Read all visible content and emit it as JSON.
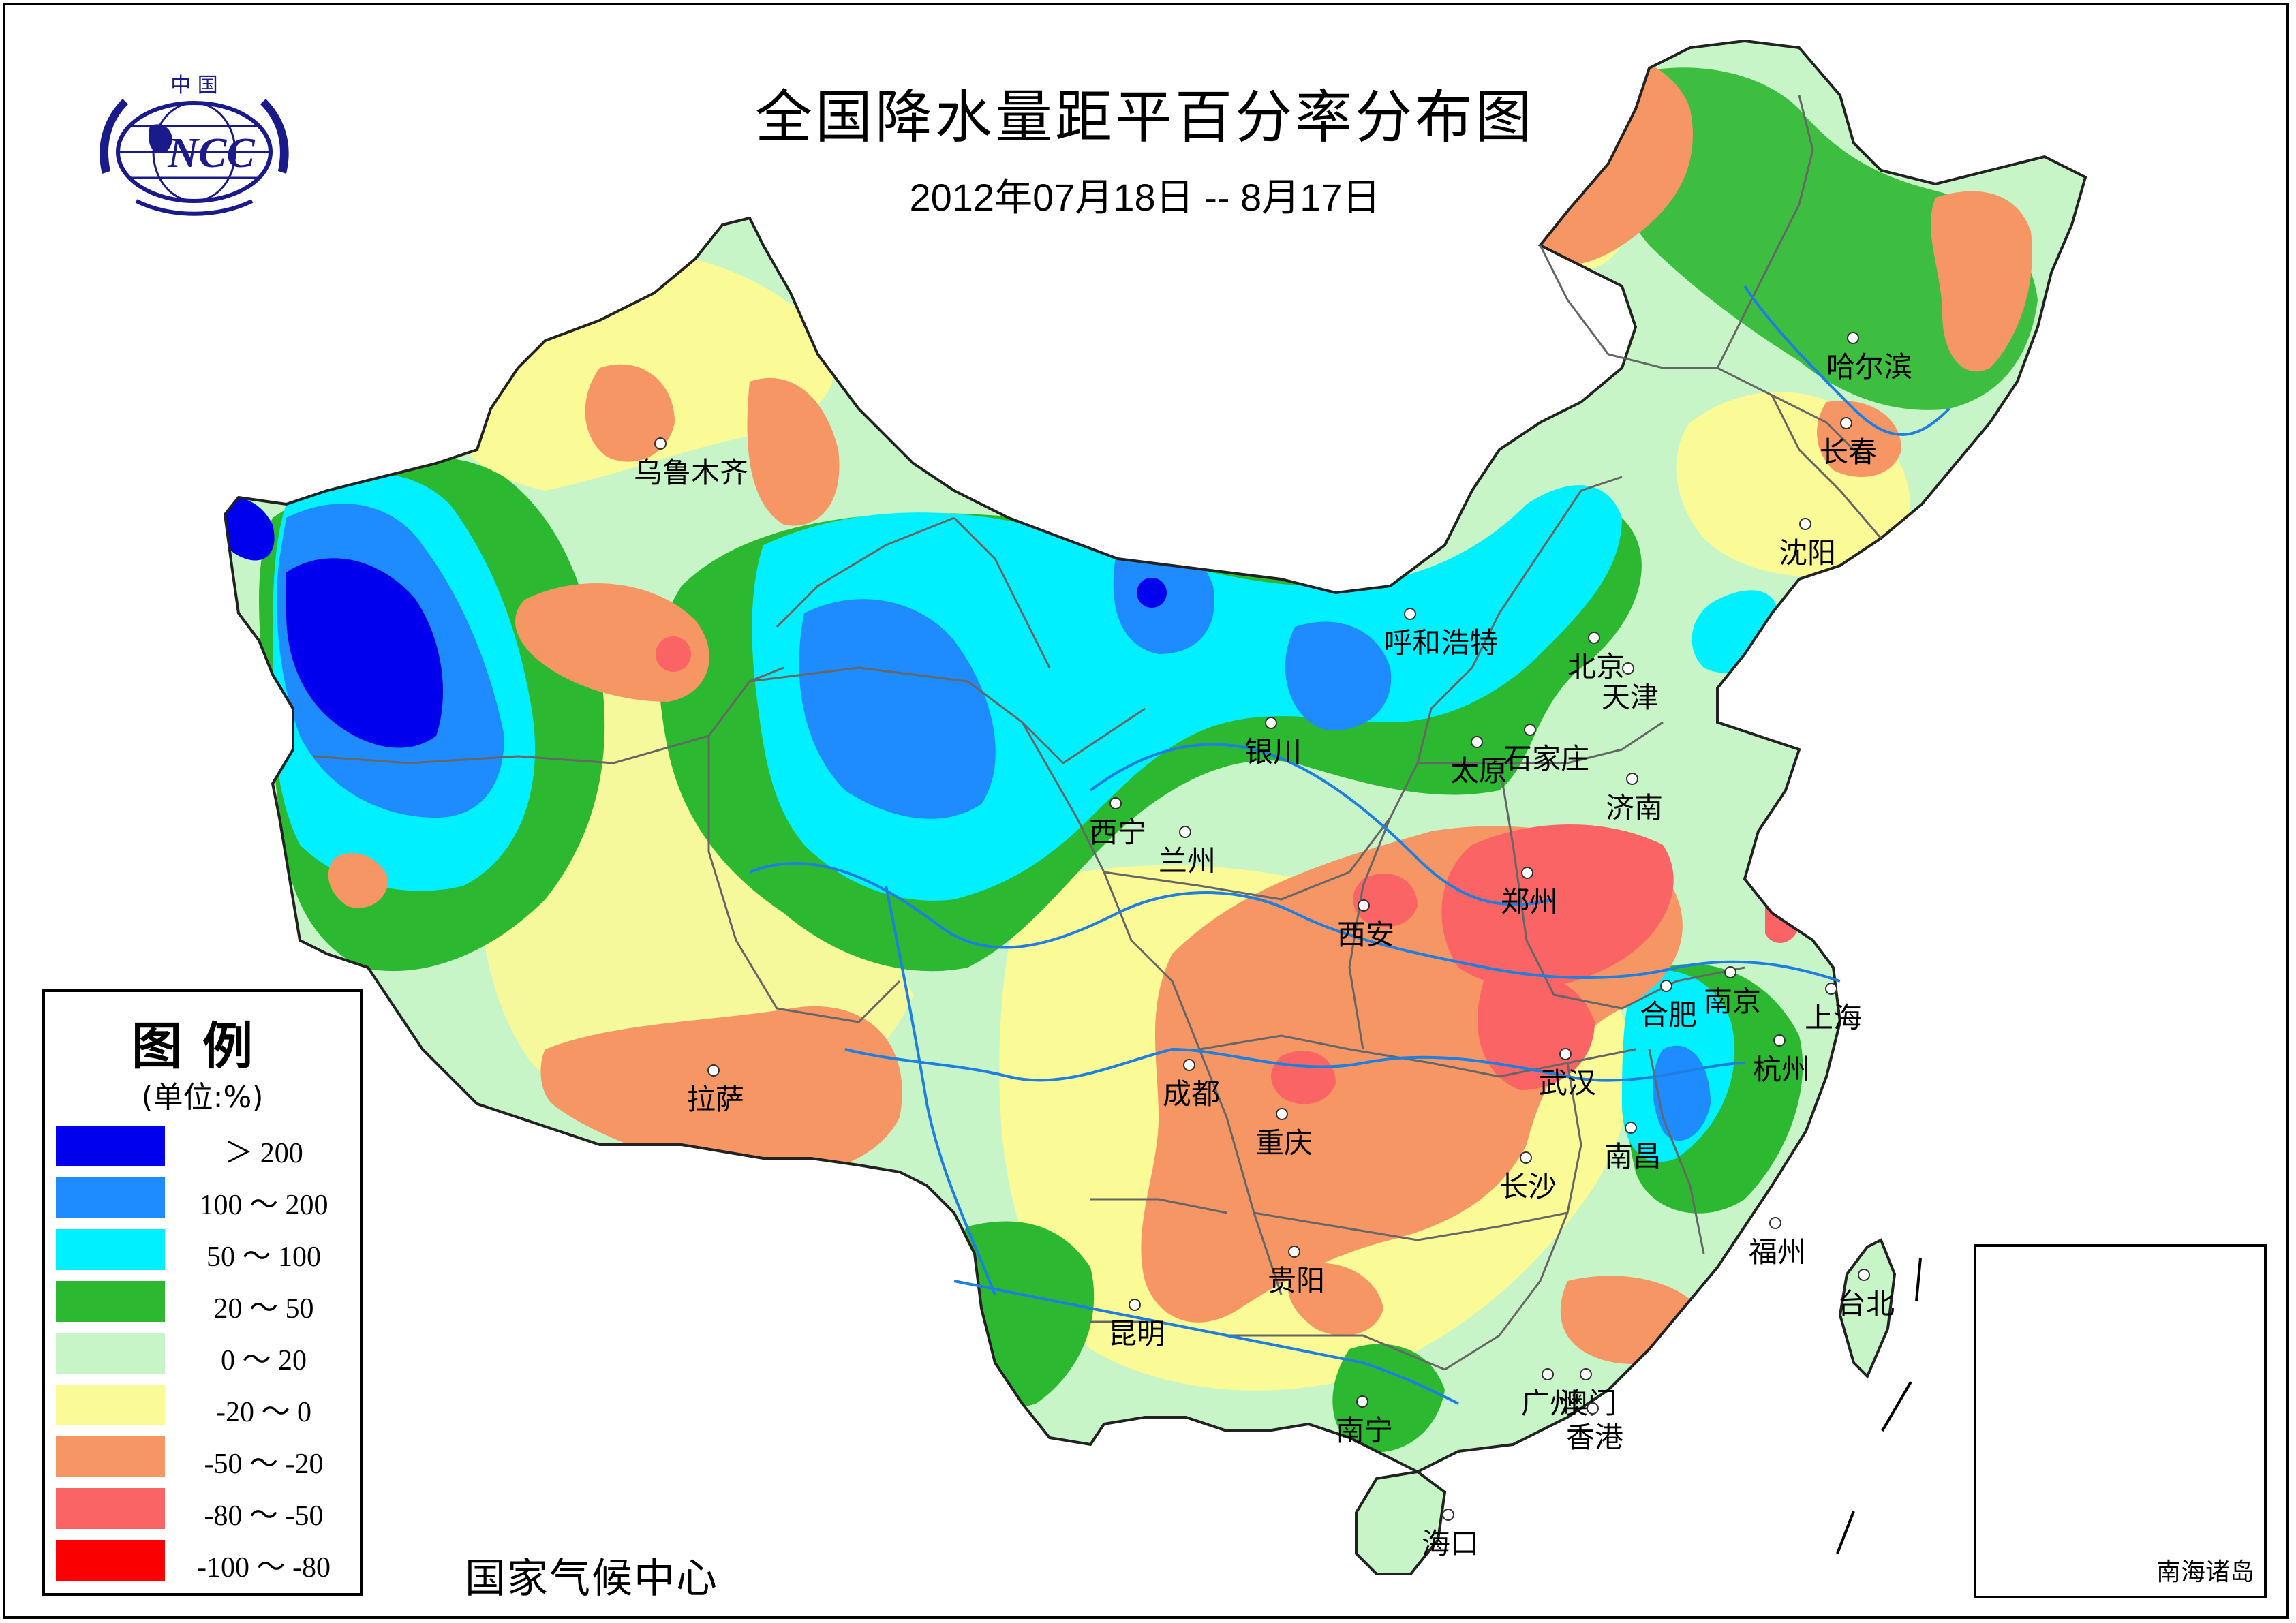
{
  "title": "全国降水量距平百分率分布图",
  "subtitle": "2012年07月18日 -- 8月17日",
  "footer": "国家气候中心",
  "logo": {
    "top_text": "中 国",
    "main_text": "NCC"
  },
  "legend": {
    "title": "图例",
    "unit": "(单位:%)",
    "items": [
      {
        "label": "＞ 200",
        "color": "#0000ee"
      },
      {
        "label": "100 ～ 200",
        "color": "#1e8cff"
      },
      {
        "label": "50 ～ 100",
        "color": "#00f0ff"
      },
      {
        "label": "20 ～ 50",
        "color": "#2db832"
      },
      {
        "label": "0 ～ 20",
        "color": "#c8f5c8"
      },
      {
        "label": "-20 ～ 0",
        "color": "#fafa96"
      },
      {
        "label": "-50 ～ -20",
        "color": "#f59664"
      },
      {
        "label": "-80 ～ -50",
        "color": "#fa6464"
      },
      {
        "label": "-100 ～ -80",
        "color": "#fa0000"
      }
    ]
  },
  "inset": {
    "label": "南海诸岛"
  },
  "cities": [
    {
      "name": "乌鲁木齐"
    },
    {
      "name": "哈尔滨"
    },
    {
      "name": "长春"
    },
    {
      "name": "沈阳"
    },
    {
      "name": "呼和浩特"
    },
    {
      "name": "北京"
    },
    {
      "name": "天津"
    },
    {
      "name": "银川"
    },
    {
      "name": "太原"
    },
    {
      "name": "石家庄"
    },
    {
      "name": "济南"
    },
    {
      "name": "西宁"
    },
    {
      "name": "兰州"
    },
    {
      "name": "郑州"
    },
    {
      "name": "西安"
    },
    {
      "name": "合肥"
    },
    {
      "name": "南京"
    },
    {
      "name": "上海"
    },
    {
      "name": "拉萨"
    },
    {
      "name": "成都"
    },
    {
      "name": "武汉"
    },
    {
      "name": "杭州"
    },
    {
      "name": "重庆"
    },
    {
      "name": "南昌"
    },
    {
      "name": "长沙"
    },
    {
      "name": "福州"
    },
    {
      "name": "贵阳"
    },
    {
      "name": "台北"
    },
    {
      "name": "昆明"
    },
    {
      "name": "广州"
    },
    {
      "name": "澳门"
    },
    {
      "name": "香港"
    },
    {
      "name": "南宁"
    },
    {
      "name": "海口"
    }
  ]
}
